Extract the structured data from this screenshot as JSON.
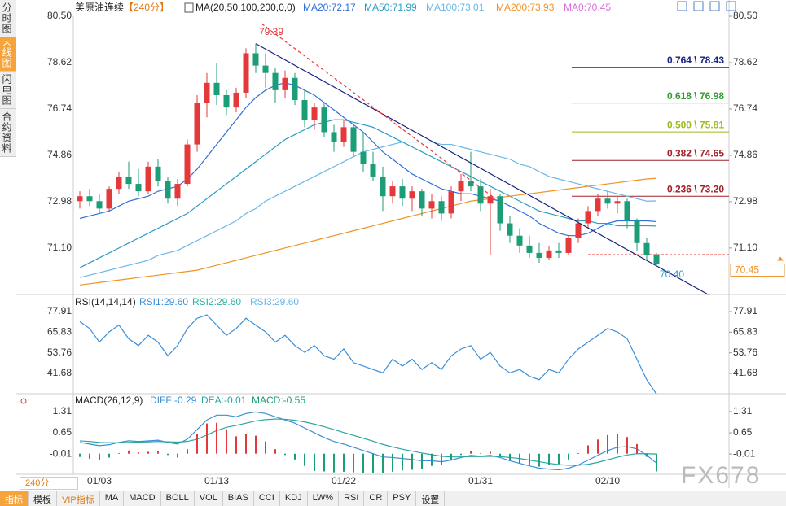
{
  "tabs": [
    "分时图",
    "K线图",
    "闪电图",
    "合约资料"
  ],
  "toolbar": [
    "指标",
    "模板",
    "VIP指标",
    "MA",
    "MACD",
    "BOLL",
    "VOL",
    "BIAS",
    "CCI",
    "KDJ",
    "LW%",
    "RSI",
    "CR",
    "PSY",
    "设置"
  ],
  "period_button": "240分",
  "watermark": "FX678",
  "chart_data": [
    {
      "type": "candlestick",
      "title": "美原油连续",
      "period": "【240分】",
      "ma_title": "MA(20,50,100,200,0,0)",
      "ma0_label": "MA0:70.45",
      "categories": [
        null,
        null,
        "01/03",
        null,
        null,
        null,
        null,
        null,
        null,
        null,
        null,
        null,
        null,
        null,
        "01/13",
        null,
        null,
        null,
        null,
        null,
        null,
        null,
        null,
        null,
        null,
        null,
        null,
        "01/22",
        null,
        null,
        null,
        null,
        null,
        null,
        null,
        null,
        null,
        null,
        null,
        null,
        null,
        "01/31",
        null,
        null,
        null,
        null,
        null,
        null,
        null,
        null,
        null,
        null,
        null,
        null,
        "02/10",
        null,
        null,
        null,
        null,
        null
      ],
      "open": [
        73.0,
        73.2,
        73.0,
        72.7,
        73.5,
        74.0,
        73.7,
        73.4,
        74.4,
        73.8,
        73.1,
        73.7,
        75.3,
        77.0,
        77.8,
        77.3,
        76.8,
        77.4,
        79.0,
        78.5,
        78.2,
        77.5,
        78.0,
        77.1,
        76.3,
        76.8,
        75.8,
        75.4,
        76.0,
        75.0,
        74.5,
        74.0,
        73.2,
        73.6,
        73.1,
        73.4,
        72.7,
        73.0,
        72.5,
        73.4,
        73.8,
        73.6,
        72.9,
        73.2,
        72.1,
        71.6,
        71.2,
        70.9,
        70.7,
        71.0,
        70.9,
        71.5,
        72.1,
        72.6,
        73.1,
        72.9,
        73.0,
        72.2,
        71.3,
        70.8
      ],
      "high": [
        73.4,
        73.5,
        73.3,
        73.6,
        74.2,
        74.6,
        74.3,
        74.6,
        74.7,
        74.0,
        73.9,
        75.5,
        77.3,
        78.2,
        78.6,
        77.5,
        77.6,
        79.2,
        79.39,
        79.0,
        78.4,
        78.3,
        78.2,
        77.5,
        77.0,
        77.0,
        76.1,
        76.3,
        76.1,
        75.8,
        75.0,
        74.4,
        73.8,
        73.9,
        73.6,
        73.5,
        73.3,
        73.2,
        73.6,
        74.1,
        75.0,
        73.9,
        73.5,
        73.3,
        72.4,
        71.9,
        71.6,
        71.3,
        71.2,
        71.3,
        71.6,
        72.3,
        72.8,
        73.3,
        73.4,
        73.2,
        73.1,
        72.3,
        71.5,
        70.9
      ],
      "low": [
        72.7,
        72.8,
        72.5,
        72.6,
        73.3,
        73.5,
        73.2,
        73.3,
        73.6,
        72.9,
        72.8,
        73.6,
        75.0,
        76.4,
        76.9,
        76.5,
        76.6,
        77.2,
        78.2,
        77.6,
        77.0,
        77.2,
        76.9,
        76.0,
        75.9,
        75.6,
        75.0,
        75.2,
        74.8,
        74.2,
        73.8,
        72.6,
        72.9,
        72.8,
        72.6,
        72.4,
        72.3,
        72.2,
        72.3,
        73.0,
        73.4,
        72.6,
        70.8,
        71.8,
        71.3,
        70.9,
        70.7,
        70.5,
        70.6,
        70.7,
        70.8,
        71.3,
        71.9,
        72.4,
        72.7,
        72.5,
        71.9,
        71.0,
        70.6,
        70.4
      ],
      "close": [
        73.2,
        73.0,
        72.7,
        73.5,
        74.0,
        73.7,
        73.4,
        74.4,
        73.8,
        73.1,
        73.7,
        75.3,
        77.0,
        77.8,
        77.3,
        76.8,
        77.4,
        79.0,
        78.5,
        78.2,
        77.5,
        78.0,
        77.1,
        76.3,
        76.8,
        75.8,
        75.4,
        76.0,
        75.0,
        74.5,
        74.0,
        73.2,
        73.6,
        73.1,
        73.4,
        72.7,
        73.0,
        72.5,
        73.4,
        73.8,
        73.6,
        72.9,
        73.2,
        72.1,
        71.6,
        71.2,
        70.9,
        70.7,
        71.0,
        70.9,
        71.5,
        72.1,
        72.6,
        73.1,
        72.9,
        73.0,
        72.2,
        71.3,
        70.8,
        70.45
      ],
      "up_color": "#e5383b",
      "down_color": "#1b9e77",
      "series": [
        {
          "name": "MA20:72.17",
          "color": "#2f6fd6",
          "values": [
            72.3,
            72.4,
            72.5,
            72.6,
            72.8,
            73.0,
            73.1,
            73.2,
            73.4,
            73.5,
            73.6,
            73.9,
            74.3,
            74.8,
            75.3,
            75.8,
            76.3,
            76.8,
            77.2,
            77.5,
            77.7,
            77.8,
            77.7,
            77.5,
            77.3,
            77.0,
            76.7,
            76.4,
            76.1,
            75.8,
            75.4,
            75.0,
            74.7,
            74.4,
            74.1,
            73.9,
            73.7,
            73.5,
            73.4,
            73.3,
            73.3,
            73.2,
            73.1,
            73.0,
            72.8,
            72.6,
            72.4,
            72.1,
            71.9,
            71.7,
            71.6,
            71.6,
            71.7,
            71.9,
            72.1,
            72.2,
            72.2,
            72.2,
            72.2,
            72.17
          ]
        },
        {
          "name": "MA50:71.99",
          "color": "#2a9dc4",
          "values": [
            70.3,
            70.5,
            70.7,
            70.9,
            71.1,
            71.3,
            71.5,
            71.7,
            71.9,
            72.1,
            72.3,
            72.5,
            72.8,
            73.1,
            73.4,
            73.7,
            74.0,
            74.3,
            74.6,
            74.9,
            75.2,
            75.5,
            75.7,
            75.9,
            76.1,
            76.2,
            76.3,
            76.3,
            76.2,
            76.1,
            76.0,
            75.8,
            75.6,
            75.4,
            75.2,
            75.0,
            74.8,
            74.6,
            74.4,
            74.2,
            74.0,
            73.8,
            73.6,
            73.4,
            73.2,
            73.0,
            72.8,
            72.6,
            72.5,
            72.4,
            72.3,
            72.2,
            72.2,
            72.1,
            72.1,
            72.0,
            72.0,
            72.0,
            72.0,
            71.99
          ]
        },
        {
          "name": "MA100:73.01",
          "color": "#6ab7e8",
          "values": [
            69.9,
            70.0,
            70.1,
            70.2,
            70.3,
            70.4,
            70.5,
            70.6,
            70.8,
            70.9,
            71.0,
            71.2,
            71.4,
            71.6,
            71.8,
            72.0,
            72.2,
            72.5,
            72.7,
            73.0,
            73.2,
            73.4,
            73.6,
            73.8,
            74.0,
            74.2,
            74.4,
            74.6,
            74.8,
            75.0,
            75.1,
            75.2,
            75.3,
            75.4,
            75.4,
            75.4,
            75.4,
            75.3,
            75.3,
            75.2,
            75.1,
            75.0,
            74.9,
            74.8,
            74.7,
            74.5,
            74.4,
            74.2,
            74.0,
            73.9,
            73.8,
            73.7,
            73.6,
            73.5,
            73.4,
            73.3,
            73.2,
            73.1,
            73.0,
            73.01
          ]
        },
        {
          "name": "MA200:73.93",
          "color": "#f0922b",
          "values": [
            69.6,
            69.65,
            69.7,
            69.75,
            69.8,
            69.85,
            69.9,
            69.95,
            70.0,
            70.05,
            70.1,
            70.15,
            70.2,
            70.3,
            70.4,
            70.5,
            70.6,
            70.7,
            70.8,
            70.9,
            71.0,
            71.1,
            71.2,
            71.3,
            71.4,
            71.5,
            71.6,
            71.7,
            71.8,
            71.9,
            72.0,
            72.1,
            72.2,
            72.3,
            72.4,
            72.5,
            72.6,
            72.7,
            72.8,
            72.9,
            73.0,
            73.05,
            73.1,
            73.15,
            73.2,
            73.25,
            73.3,
            73.35,
            73.4,
            73.45,
            73.5,
            73.55,
            73.6,
            73.65,
            73.7,
            73.75,
            73.8,
            73.85,
            73.9,
            73.93
          ]
        }
      ],
      "ylim": [
        69.28,
        80.5
      ],
      "yticks": [
        {
          "value": 80.5,
          "label": "80.50"
        },
        78.62,
        76.74,
        74.86,
        72.98,
        {
          "value": 71.1,
          "label": "71.10"
        }
      ],
      "fib_levels": [
        {
          "label": "0.764 \\ 78.43",
          "value": 78.43,
          "color": "#1a237e"
        },
        {
          "label": "0.618 \\ 76.98",
          "value": 76.98,
          "color": "#2e9e2e"
        },
        {
          "label": "0.500 \\ 75.81",
          "value": 75.81,
          "color": "#9bbb1f"
        },
        {
          "label": "0.382 \\ 74.65",
          "value": 74.65,
          "color": "#a3202a"
        },
        {
          "label": "0.236 \\ 73.20",
          "value": 73.2,
          "color": "#a3202a"
        }
      ],
      "trend_lines": [
        {
          "x": [
            18,
            64.3
          ],
          "y": [
            79.39,
            69.21
          ],
          "color": "#1a237e",
          "dashed": false
        },
        {
          "x": [
            18.6,
            42.5
          ],
          "y": [
            80.2,
            73.1
          ],
          "color": "#e5383b",
          "dashed": true
        }
      ],
      "support_line": 70.83,
      "price_line": 70.45,
      "annotations": [
        {
          "label": "79.39",
          "value": 79.39,
          "x": 18,
          "color": "#e5383b"
        },
        {
          "label": "70.40",
          "value": 70.4,
          "x": 59,
          "color": "#2a9dc4"
        }
      ]
    },
    {
      "type": "line",
      "title": "RSI(14,14,14)",
      "other_labels": [
        "RSI2:29.60",
        "RSI3:29.60"
      ],
      "series": [
        {
          "name": "RSI1:29.60",
          "color": "#3a8fd9",
          "values": [
            72,
            68,
            60,
            66,
            70,
            62,
            58,
            64,
            60,
            52,
            58,
            68,
            74,
            76,
            70,
            64,
            68,
            74,
            70,
            66,
            60,
            64,
            58,
            54,
            58,
            52,
            50,
            56,
            48,
            46,
            44,
            42,
            50,
            46,
            50,
            44,
            48,
            44,
            52,
            56,
            58,
            50,
            54,
            46,
            42,
            44,
            40,
            38,
            44,
            42,
            50,
            56,
            60,
            64,
            68,
            66,
            62,
            50,
            38,
            29.6
          ]
        }
      ],
      "ylim": [
        29.3,
        86.5
      ],
      "yticks": [
        77.91,
        65.83,
        53.76,
        41.68
      ]
    },
    {
      "type": "macd",
      "title": "MACD(26,12,9)",
      "series": [
        {
          "name": "DIFF:-0.29",
          "color": "#3a8fd9",
          "values": [
            0.35,
            0.3,
            0.25,
            0.28,
            0.35,
            0.4,
            0.38,
            0.4,
            0.42,
            0.35,
            0.3,
            0.45,
            0.75,
            1.05,
            1.2,
            1.2,
            1.15,
            1.25,
            1.3,
            1.25,
            1.15,
            1.05,
            0.95,
            0.8,
            0.65,
            0.5,
            0.38,
            0.3,
            0.2,
            0.1,
            0.0,
            -0.1,
            -0.12,
            -0.15,
            -0.18,
            -0.22,
            -0.22,
            -0.25,
            -0.2,
            -0.12,
            -0.05,
            -0.08,
            -0.05,
            -0.12,
            -0.22,
            -0.3,
            -0.38,
            -0.45,
            -0.48,
            -0.5,
            -0.45,
            -0.35,
            -0.2,
            -0.05,
            0.1,
            0.2,
            0.22,
            0.15,
            -0.05,
            -0.29
          ]
        },
        {
          "name": "DEA:-0.01",
          "color": "#2aa6a0",
          "values": [
            0.4,
            0.38,
            0.35,
            0.34,
            0.34,
            0.35,
            0.36,
            0.37,
            0.38,
            0.37,
            0.36,
            0.38,
            0.45,
            0.58,
            0.72,
            0.82,
            0.88,
            0.95,
            1.02,
            1.06,
            1.08,
            1.07,
            1.04,
            0.99,
            0.92,
            0.84,
            0.75,
            0.66,
            0.57,
            0.48,
            0.39,
            0.29,
            0.21,
            0.14,
            0.08,
            0.02,
            -0.03,
            -0.08,
            -0.1,
            -0.1,
            -0.09,
            -0.09,
            -0.08,
            -0.09,
            -0.12,
            -0.15,
            -0.2,
            -0.25,
            -0.3,
            -0.34,
            -0.36,
            -0.36,
            -0.33,
            -0.27,
            -0.19,
            -0.11,
            -0.04,
            0.0,
            0.0,
            -0.01
          ]
        },
        {
          "name": "MACD:-0.55",
          "bars": true,
          "up_color": "#e5383b",
          "down_color": "#1b9e77",
          "values": [
            -0.1,
            -0.16,
            -0.2,
            -0.12,
            0.02,
            0.1,
            0.04,
            0.06,
            0.08,
            -0.04,
            -0.12,
            0.14,
            0.6,
            0.94,
            0.96,
            0.76,
            0.54,
            0.6,
            0.56,
            0.38,
            0.14,
            -0.04,
            -0.18,
            -0.38,
            -0.54,
            -0.55,
            -0.58,
            -0.56,
            -0.58,
            -0.6,
            -0.6,
            -0.6,
            -0.56,
            -0.52,
            -0.5,
            -0.48,
            -0.38,
            -0.34,
            -0.2,
            -0.04,
            0.08,
            0.02,
            0.06,
            -0.06,
            -0.2,
            -0.3,
            -0.36,
            -0.4,
            -0.36,
            -0.32,
            -0.18,
            0.02,
            0.26,
            0.44,
            0.58,
            0.62,
            0.52,
            0.3,
            -0.1,
            -0.55
          ]
        }
      ],
      "ylim": [
        -0.64,
        1.79
      ],
      "yticks": [
        1.31,
        0.65,
        -0.01
      ]
    }
  ]
}
